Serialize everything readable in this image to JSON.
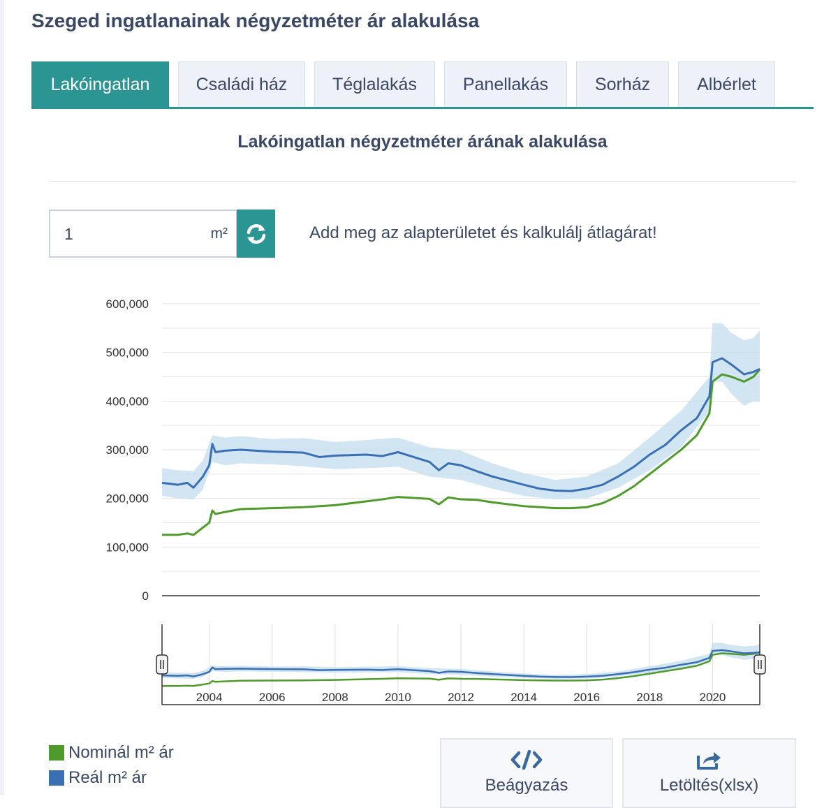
{
  "page": {
    "title": "Szeged ingatlanainak négyzetméter ár alakulása"
  },
  "tabs": [
    {
      "label": "Lakóingatlan",
      "active": true
    },
    {
      "label": "Családi ház",
      "active": false
    },
    {
      "label": "Téglalakás",
      "active": false
    },
    {
      "label": "Panellakás",
      "active": false
    },
    {
      "label": "Sorház",
      "active": false
    },
    {
      "label": "Albérlet",
      "active": false
    }
  ],
  "chart_section": {
    "title": "Lakóingatlan négyzetméter árának alakulása"
  },
  "area_input": {
    "value": "1",
    "unit": "m²"
  },
  "calc_hint": "Add meg az alapterületet és kalkulálj átlagárat!",
  "buttons": {
    "embed": "Beágyazás",
    "download": "Letöltés(xlsx)"
  },
  "legend": [
    {
      "label": "Nominál m² ár",
      "color": "#4e9a2b"
    },
    {
      "label": "Reál m² ár",
      "color": "#3a6fb4"
    }
  ],
  "chart_data": {
    "type": "line",
    "y_ticks": [
      {
        "value": 0,
        "label": "0"
      },
      {
        "value": 100000,
        "label": "100,000"
      },
      {
        "value": 200000,
        "label": "200,000"
      },
      {
        "value": 300000,
        "label": "300,000"
      },
      {
        "value": 400000,
        "label": "400,000"
      },
      {
        "value": 500000,
        "label": "500,000"
      },
      {
        "value": 600000,
        "label": "600,000"
      }
    ],
    "ylim": [
      0,
      600000
    ],
    "xlim": [
      2002.5,
      2021.5
    ],
    "navigator_ticks": [
      "2004",
      "2006",
      "2008",
      "2010",
      "2012",
      "2014",
      "2016",
      "2018",
      "2020"
    ],
    "grid": true,
    "series": [
      {
        "name": "Nominál m² ár",
        "color": "#4e9a2b",
        "points": [
          [
            2002.5,
            125000
          ],
          [
            2003.0,
            125000
          ],
          [
            2003.3,
            128000
          ],
          [
            2003.5,
            125000
          ],
          [
            2003.8,
            140000
          ],
          [
            2004.0,
            150000
          ],
          [
            2004.1,
            175000
          ],
          [
            2004.2,
            168000
          ],
          [
            2004.5,
            172000
          ],
          [
            2005.0,
            178000
          ],
          [
            2006.0,
            180000
          ],
          [
            2007.0,
            182000
          ],
          [
            2008.0,
            186000
          ],
          [
            2009.0,
            194000
          ],
          [
            2009.5,
            198000
          ],
          [
            2010.0,
            203000
          ],
          [
            2011.0,
            199000
          ],
          [
            2011.3,
            188000
          ],
          [
            2011.6,
            202000
          ],
          [
            2012.0,
            198000
          ],
          [
            2012.5,
            197000
          ],
          [
            2013.0,
            192000
          ],
          [
            2014.0,
            184000
          ],
          [
            2015.0,
            180000
          ],
          [
            2015.5,
            180000
          ],
          [
            2016.0,
            182000
          ],
          [
            2016.5,
            190000
          ],
          [
            2017.0,
            205000
          ],
          [
            2017.5,
            225000
          ],
          [
            2018.0,
            250000
          ],
          [
            2018.5,
            275000
          ],
          [
            2019.0,
            300000
          ],
          [
            2019.5,
            330000
          ],
          [
            2019.9,
            375000
          ],
          [
            2020.0,
            440000
          ],
          [
            2020.3,
            455000
          ],
          [
            2020.6,
            450000
          ],
          [
            2021.0,
            440000
          ],
          [
            2021.3,
            450000
          ],
          [
            2021.5,
            465000
          ]
        ]
      },
      {
        "name": "Reál m² ár",
        "color": "#3a6fb4",
        "points": [
          [
            2002.5,
            232000
          ],
          [
            2003.0,
            228000
          ],
          [
            2003.3,
            232000
          ],
          [
            2003.5,
            222000
          ],
          [
            2003.8,
            245000
          ],
          [
            2004.0,
            268000
          ],
          [
            2004.1,
            312000
          ],
          [
            2004.2,
            295000
          ],
          [
            2004.5,
            298000
          ],
          [
            2005.0,
            300000
          ],
          [
            2006.0,
            296000
          ],
          [
            2007.0,
            294000
          ],
          [
            2007.5,
            285000
          ],
          [
            2008.0,
            288000
          ],
          [
            2009.0,
            290000
          ],
          [
            2009.5,
            287000
          ],
          [
            2010.0,
            295000
          ],
          [
            2011.0,
            275000
          ],
          [
            2011.3,
            258000
          ],
          [
            2011.6,
            272000
          ],
          [
            2012.0,
            268000
          ],
          [
            2012.5,
            256000
          ],
          [
            2013.0,
            245000
          ],
          [
            2014.0,
            228000
          ],
          [
            2014.5,
            220000
          ],
          [
            2015.0,
            216000
          ],
          [
            2015.5,
            215000
          ],
          [
            2016.0,
            220000
          ],
          [
            2016.5,
            228000
          ],
          [
            2017.0,
            245000
          ],
          [
            2017.5,
            265000
          ],
          [
            2018.0,
            290000
          ],
          [
            2018.5,
            310000
          ],
          [
            2019.0,
            340000
          ],
          [
            2019.5,
            365000
          ],
          [
            2019.9,
            410000
          ],
          [
            2020.0,
            480000
          ],
          [
            2020.3,
            488000
          ],
          [
            2020.6,
            475000
          ],
          [
            2021.0,
            455000
          ],
          [
            2021.3,
            460000
          ],
          [
            2021.5,
            466000
          ]
        ]
      }
    ],
    "band": {
      "color": "#c6dff0",
      "points": [
        [
          2002.5,
          205000,
          262000
        ],
        [
          2003.0,
          200000,
          258000
        ],
        [
          2003.5,
          198000,
          256000
        ],
        [
          2003.8,
          218000,
          278000
        ],
        [
          2004.1,
          275000,
          330000
        ],
        [
          2004.5,
          268000,
          325000
        ],
        [
          2005.0,
          272000,
          328000
        ],
        [
          2006.0,
          270000,
          322000
        ],
        [
          2007.0,
          266000,
          324000
        ],
        [
          2008.0,
          260000,
          316000
        ],
        [
          2009.0,
          262000,
          320000
        ],
        [
          2010.0,
          265000,
          325000
        ],
        [
          2011.0,
          245000,
          305000
        ],
        [
          2012.0,
          238000,
          298000
        ],
        [
          2013.0,
          220000,
          272000
        ],
        [
          2014.0,
          205000,
          252000
        ],
        [
          2015.0,
          198000,
          238000
        ],
        [
          2016.0,
          200000,
          245000
        ],
        [
          2017.0,
          222000,
          272000
        ],
        [
          2018.0,
          258000,
          325000
        ],
        [
          2019.0,
          305000,
          380000
        ],
        [
          2019.9,
          380000,
          450000
        ],
        [
          2020.0,
          440000,
          560000
        ],
        [
          2020.3,
          440000,
          560000
        ],
        [
          2020.6,
          415000,
          540000
        ],
        [
          2021.0,
          390000,
          525000
        ],
        [
          2021.3,
          400000,
          530000
        ],
        [
          2021.5,
          398000,
          545000
        ]
      ]
    }
  }
}
